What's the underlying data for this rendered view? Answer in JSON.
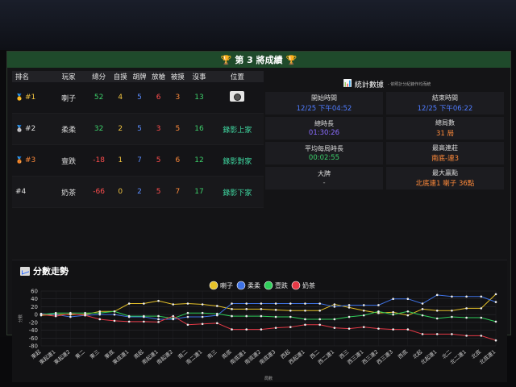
{
  "window": {
    "title": "第 3 將成績"
  },
  "ranking": {
    "headers": [
      "排名",
      "玩家",
      "總分",
      "自摸",
      "胡牌",
      "放槍",
      "被摸",
      "沒事",
      "位置"
    ],
    "rows": [
      {
        "rank": "#1",
        "player": "喇子",
        "total": "52",
        "zimo": "4",
        "hu": "5",
        "fangqiang": "6",
        "beimo": "3",
        "meishi": "13",
        "position": "",
        "position_icon": "camera-icon"
      },
      {
        "rank": "#2",
        "player": "柔柔",
        "total": "32",
        "zimo": "2",
        "hu": "5",
        "fangqiang": "3",
        "beimo": "5",
        "meishi": "16",
        "position": "錄影上家"
      },
      {
        "rank": "#3",
        "player": "壹跌",
        "total": "-18",
        "zimo": "1",
        "hu": "7",
        "fangqiang": "5",
        "beimo": "6",
        "meishi": "12",
        "position": "錄影對家"
      },
      {
        "rank": "#4",
        "player": "奶茶",
        "total": "-66",
        "zimo": "0",
        "hu": "2",
        "fangqiang": "5",
        "beimo": "7",
        "meishi": "17",
        "position": "錄影下家"
      }
    ]
  },
  "stats": {
    "title": "統計數據",
    "subtitle": "- 依照計分紀錄作均而統",
    "items": [
      {
        "label": "開始時間",
        "value": "12/25 下午04:52",
        "color": "#4f7cff"
      },
      {
        "label": "結束時間",
        "value": "12/25 下午06:22",
        "color": "#4f7cff"
      },
      {
        "label": "總時長",
        "value": "01:30:26",
        "color": "#8a6cff"
      },
      {
        "label": "總局數",
        "value": "31 局",
        "color": "#ff8a3a"
      },
      {
        "label": "平均每局時長",
        "value": "00:02:55",
        "color": "#3ccf6a"
      },
      {
        "label": "最高連莊",
        "value": "南底-連3",
        "color": "#ff8a3a"
      },
      {
        "label": "大牌",
        "value": "-",
        "color": "#aaaaaa"
      },
      {
        "label": "最大贏點",
        "value": "北底連1 喇子 36點",
        "color": "#ff8a3a"
      }
    ]
  },
  "chart_title": "分數走勢",
  "chart_data": {
    "type": "line",
    "title": "分數走勢",
    "xlabel": "局數",
    "ylabel": "分數",
    "ylim": [
      -80,
      60
    ],
    "yticks": [
      "60",
      "40",
      "20",
      "0",
      "-20",
      "-40",
      "-60",
      "-80"
    ],
    "grid": true,
    "legend_position": "top",
    "categories": [
      "東起",
      "東起連1",
      "東起連2",
      "東二",
      "東三",
      "東底",
      "東底連1",
      "南起",
      "南起連1",
      "南起連2",
      "南二",
      "南二連1",
      "南三",
      "南底",
      "南底連1",
      "南底連2",
      "南底連3",
      "西起",
      "西起連1",
      "西二",
      "西二連1",
      "西三",
      "西三連1",
      "西三連2",
      "西三連3",
      "西底",
      "北起",
      "北起連1",
      "北二",
      "北二連1",
      "北底",
      "北底連1"
    ],
    "series": [
      {
        "name": "喇子",
        "color": "#e6c229",
        "values": [
          -2,
          0,
          0,
          0,
          8,
          8,
          28,
          28,
          35,
          26,
          28,
          26,
          22,
          14,
          14,
          14,
          12,
          10,
          10,
          10,
          26,
          18,
          10,
          4,
          6,
          -2,
          14,
          10,
          10,
          16,
          16,
          52
        ]
      },
      {
        "name": "柔柔",
        "color": "#3f73e6",
        "values": [
          2,
          0,
          -6,
          -2,
          0,
          0,
          -6,
          -6,
          -12,
          -12,
          -6,
          -6,
          -2,
          28,
          28,
          28,
          28,
          28,
          28,
          28,
          20,
          24,
          24,
          24,
          40,
          40,
          28,
          50,
          46,
          46,
          46,
          32
        ]
      },
      {
        "name": "壹跌",
        "color": "#2fcf5a",
        "values": [
          0,
          4,
          4,
          4,
          4,
          8,
          -4,
          -4,
          -4,
          -10,
          4,
          4,
          2,
          -4,
          -4,
          -4,
          -6,
          -6,
          -12,
          -12,
          -12,
          -6,
          -2,
          8,
          0,
          8,
          -2,
          -10,
          -6,
          -8,
          -8,
          -18
        ]
      },
      {
        "name": "奶茶",
        "color": "#e63946",
        "values": [
          0,
          -4,
          2,
          -2,
          -12,
          -16,
          -18,
          -18,
          -19,
          -4,
          -26,
          -24,
          -22,
          -38,
          -38,
          -38,
          -34,
          -32,
          -26,
          -26,
          -34,
          -36,
          -32,
          -36,
          -38,
          -38,
          -50,
          -50,
          -50,
          -54,
          -54,
          -66
        ]
      }
    ]
  }
}
